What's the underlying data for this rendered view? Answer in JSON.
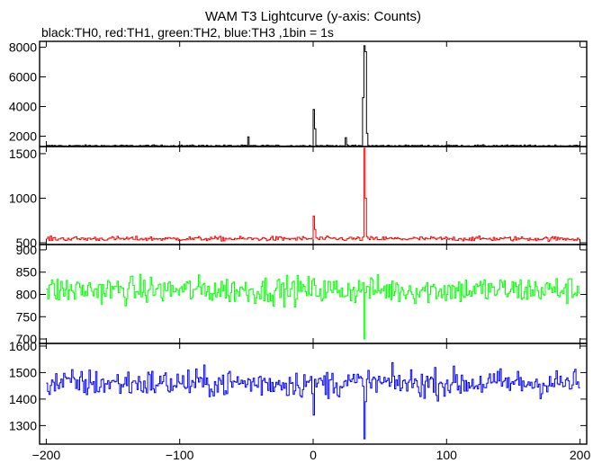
{
  "chart_data": {
    "type": "line",
    "title": "WAM T3 Lightcurve (y-axis: Counts)",
    "subtitle": "black:TH0, red:TH1, green:TH2, blue:TH3 ,1bin = 1s",
    "xlim": [
      -205,
      205
    ],
    "x_ticks": [
      -200,
      -100,
      0,
      100,
      200
    ],
    "x_tick_labels": [
      "−200",
      "−100",
      "0",
      "100",
      "200"
    ],
    "grid": false,
    "panels": [
      {
        "name": "TH0",
        "color": "#000000",
        "ylim": [
          1300,
          8400
        ],
        "y_ticks": [
          2000,
          4000,
          6000,
          8000
        ],
        "y_tick_labels": [
          "2000",
          "4000",
          "6000",
          "8000"
        ],
        "baseline": 1350,
        "noise": 40,
        "features": [
          {
            "x": -49,
            "value": 1950
          },
          {
            "x": 0,
            "value": 3800
          },
          {
            "x": 1,
            "value": 2500
          },
          {
            "x": 24,
            "value": 1900
          },
          {
            "x": 37,
            "value": 4600
          },
          {
            "x": 38,
            "value": 8100
          },
          {
            "x": 39,
            "value": 7700
          },
          {
            "x": 40,
            "value": 2200
          }
        ]
      },
      {
        "name": "TH1",
        "color": "#ff0000",
        "ylim": [
          480,
          1580
        ],
        "y_ticks": [
          500,
          1000,
          1500
        ],
        "y_tick_labels": [
          "500",
          "1000",
          "1500"
        ],
        "baseline": 545,
        "noise": 18,
        "features": [
          {
            "x": 0,
            "value": 800
          },
          {
            "x": 1,
            "value": 650
          },
          {
            "x": 38,
            "value": 1560
          },
          {
            "x": 39,
            "value": 1000
          }
        ]
      },
      {
        "name": "TH2",
        "color": "#00ff00",
        "ylim": [
          690,
          912
        ],
        "y_ticks": [
          700,
          750,
          800,
          850,
          900
        ],
        "y_tick_labels": [
          "700",
          "750",
          "800",
          "850",
          "900"
        ],
        "baseline": 810,
        "noise": 22,
        "features": [
          {
            "x": 38,
            "value": 700
          }
        ]
      },
      {
        "name": "TH3",
        "color": "#0000ff",
        "ylim": [
          1230,
          1610
        ],
        "y_ticks": [
          1300,
          1400,
          1500,
          1600
        ],
        "y_tick_labels": [
          "1300",
          "1400",
          "1500",
          "1600"
        ],
        "baseline": 1460,
        "noise": 38,
        "features": [
          {
            "x": 0,
            "value": 1340
          },
          {
            "x": 38,
            "value": 1250
          }
        ]
      }
    ]
  }
}
